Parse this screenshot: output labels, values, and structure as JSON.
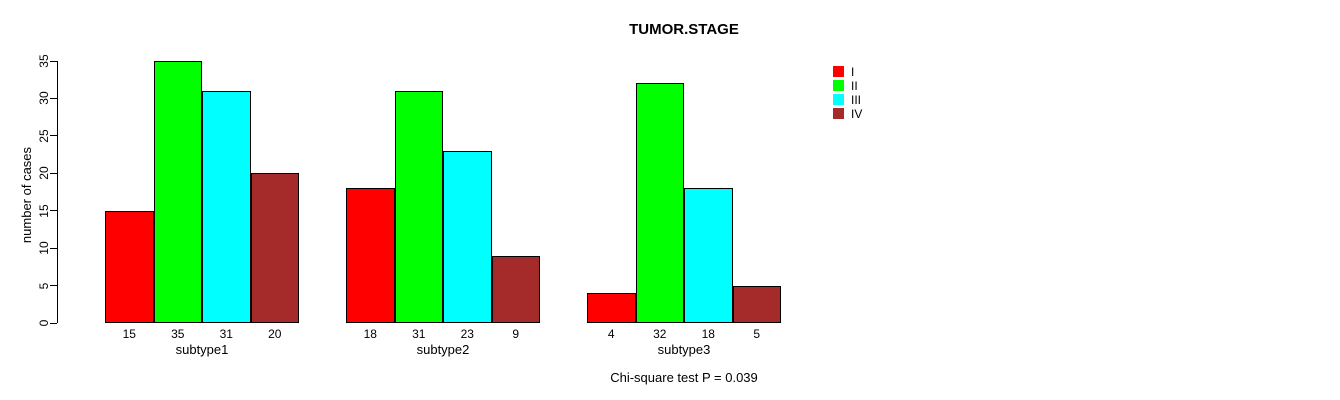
{
  "title": "TUMOR.STAGE",
  "footer": {
    "text": "Chi-square test P = 0.039"
  },
  "y_axis": {
    "label": "number of cases",
    "tick_labels": [
      "0",
      "5",
      "10",
      "15",
      "20",
      "25",
      "30",
      "35"
    ]
  },
  "legend": {
    "position": "top-right",
    "items": [
      {
        "label": "I",
        "color": "#FF0000"
      },
      {
        "label": "II",
        "color": "#00FF00"
      },
      {
        "label": "III",
        "color": "#00FFFF"
      },
      {
        "label": "IV",
        "color": "#A52A2A"
      }
    ]
  },
  "chart_data": {
    "type": "bar",
    "grouped": true,
    "title": "TUMOR.STAGE",
    "xlabel": "",
    "ylabel": "number of cases",
    "ylim": [
      0,
      35
    ],
    "grid": false,
    "legend_position": "top-right",
    "categories": [
      "subtype1",
      "subtype2",
      "subtype3"
    ],
    "series": [
      {
        "name": "I",
        "color": "#FF0000",
        "values": [
          15,
          18,
          4
        ]
      },
      {
        "name": "II",
        "color": "#00FF00",
        "values": [
          35,
          31,
          32
        ]
      },
      {
        "name": "III",
        "color": "#00FFFF",
        "values": [
          31,
          23,
          18
        ]
      },
      {
        "name": "IV",
        "color": "#A52A2A",
        "values": [
          20,
          9,
          5
        ]
      }
    ],
    "bar_value_labels_below_axis": true,
    "annotation": "Chi-square test P = 0.039"
  }
}
